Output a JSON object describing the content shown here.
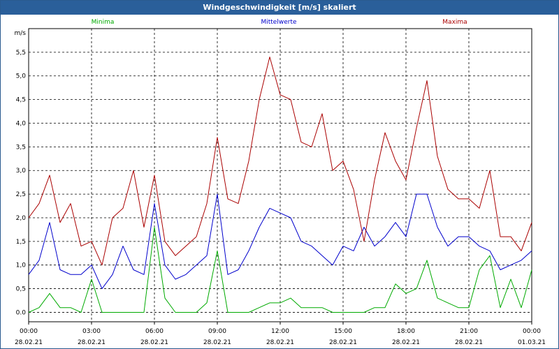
{
  "window": {
    "title": "Windgeschwindigkeit [m/s] skaliert"
  },
  "chart_data": {
    "type": "line",
    "title": "Windgeschwindigkeit [m/s] skaliert",
    "ylabel": "m/s",
    "xlabel": "",
    "ylim": [
      -0.2,
      6.0
    ],
    "xlim": [
      0,
      24
    ],
    "yticks": [
      "0.0",
      "0,5",
      "1,0",
      "1,5",
      "2,0",
      "2,5",
      "3,0",
      "3,5",
      "4,0",
      "4,5",
      "5,0",
      "5,5"
    ],
    "x_tick_labels": [
      {
        "time": "00:00",
        "date": "28.02.21"
      },
      {
        "time": "03:00",
        "date": "28.02.21"
      },
      {
        "time": "06:00",
        "date": "28.02.21"
      },
      {
        "time": "09:00",
        "date": "28.02.21"
      },
      {
        "time": "12:00",
        "date": "28.02.21"
      },
      {
        "time": "15:00",
        "date": "28.02.21"
      },
      {
        "time": "18:00",
        "date": "28.02.21"
      },
      {
        "time": "21:00",
        "date": "28.02.21"
      },
      {
        "time": "00:00",
        "date": "01.03.21"
      }
    ],
    "grid": true,
    "legend_position": "top",
    "x_hours": [
      0,
      0.5,
      1,
      1.5,
      2,
      2.5,
      3,
      3.5,
      4,
      4.5,
      5,
      5.5,
      6,
      6.5,
      7,
      7.5,
      8,
      8.5,
      9,
      9.5,
      10,
      10.5,
      11,
      11.5,
      12,
      12.5,
      13,
      13.5,
      14,
      14.5,
      15,
      15.5,
      16,
      16.5,
      17,
      17.5,
      18,
      18.5,
      19,
      19.5,
      20,
      20.5,
      21,
      21.5,
      22,
      22.5,
      23,
      23.5,
      24
    ],
    "series": [
      {
        "name": "Minima",
        "color": "#00aa00",
        "values": [
          0.0,
          0.1,
          0.4,
          0.1,
          0.1,
          0.0,
          0.7,
          0.0,
          0.0,
          0.0,
          0.0,
          0.0,
          1.8,
          0.3,
          0.0,
          0.0,
          0.0,
          0.2,
          1.3,
          0.0,
          0.0,
          0.0,
          0.1,
          0.2,
          0.2,
          0.3,
          0.1,
          0.1,
          0.1,
          0.0,
          0.0,
          0.0,
          0.0,
          0.1,
          0.1,
          0.6,
          0.4,
          0.5,
          1.1,
          0.3,
          0.2,
          0.1,
          0.1,
          0.9,
          1.2,
          0.1,
          0.7,
          0.1,
          0.9
        ]
      },
      {
        "name": "Mittelwerte",
        "color": "#0000cc",
        "values": [
          0.8,
          1.1,
          1.9,
          0.9,
          0.8,
          0.8,
          1.0,
          0.5,
          0.8,
          1.4,
          0.9,
          0.8,
          2.3,
          1.0,
          0.7,
          0.8,
          1.0,
          1.2,
          2.5,
          0.8,
          0.9,
          1.3,
          1.8,
          2.2,
          2.1,
          2.0,
          1.5,
          1.4,
          1.2,
          1.0,
          1.4,
          1.3,
          1.8,
          1.4,
          1.6,
          1.9,
          1.6,
          2.5,
          2.5,
          1.8,
          1.4,
          1.6,
          1.6,
          1.4,
          1.3,
          0.9,
          1.0,
          1.1,
          1.3
        ]
      },
      {
        "name": "Maxima",
        "color": "#aa0000",
        "values": [
          2.0,
          2.3,
          2.9,
          1.9,
          2.3,
          1.4,
          1.5,
          1.0,
          2.0,
          2.2,
          3.0,
          1.8,
          2.9,
          1.5,
          1.2,
          1.4,
          1.6,
          2.3,
          3.7,
          2.4,
          2.3,
          3.2,
          4.5,
          5.4,
          4.6,
          4.5,
          3.6,
          3.5,
          4.2,
          3.0,
          3.2,
          2.6,
          1.5,
          2.8,
          3.8,
          3.2,
          2.8,
          3.9,
          4.9,
          3.3,
          2.6,
          2.4,
          2.4,
          2.2,
          3.0,
          1.6,
          1.6,
          1.3,
          1.9
        ]
      }
    ]
  }
}
